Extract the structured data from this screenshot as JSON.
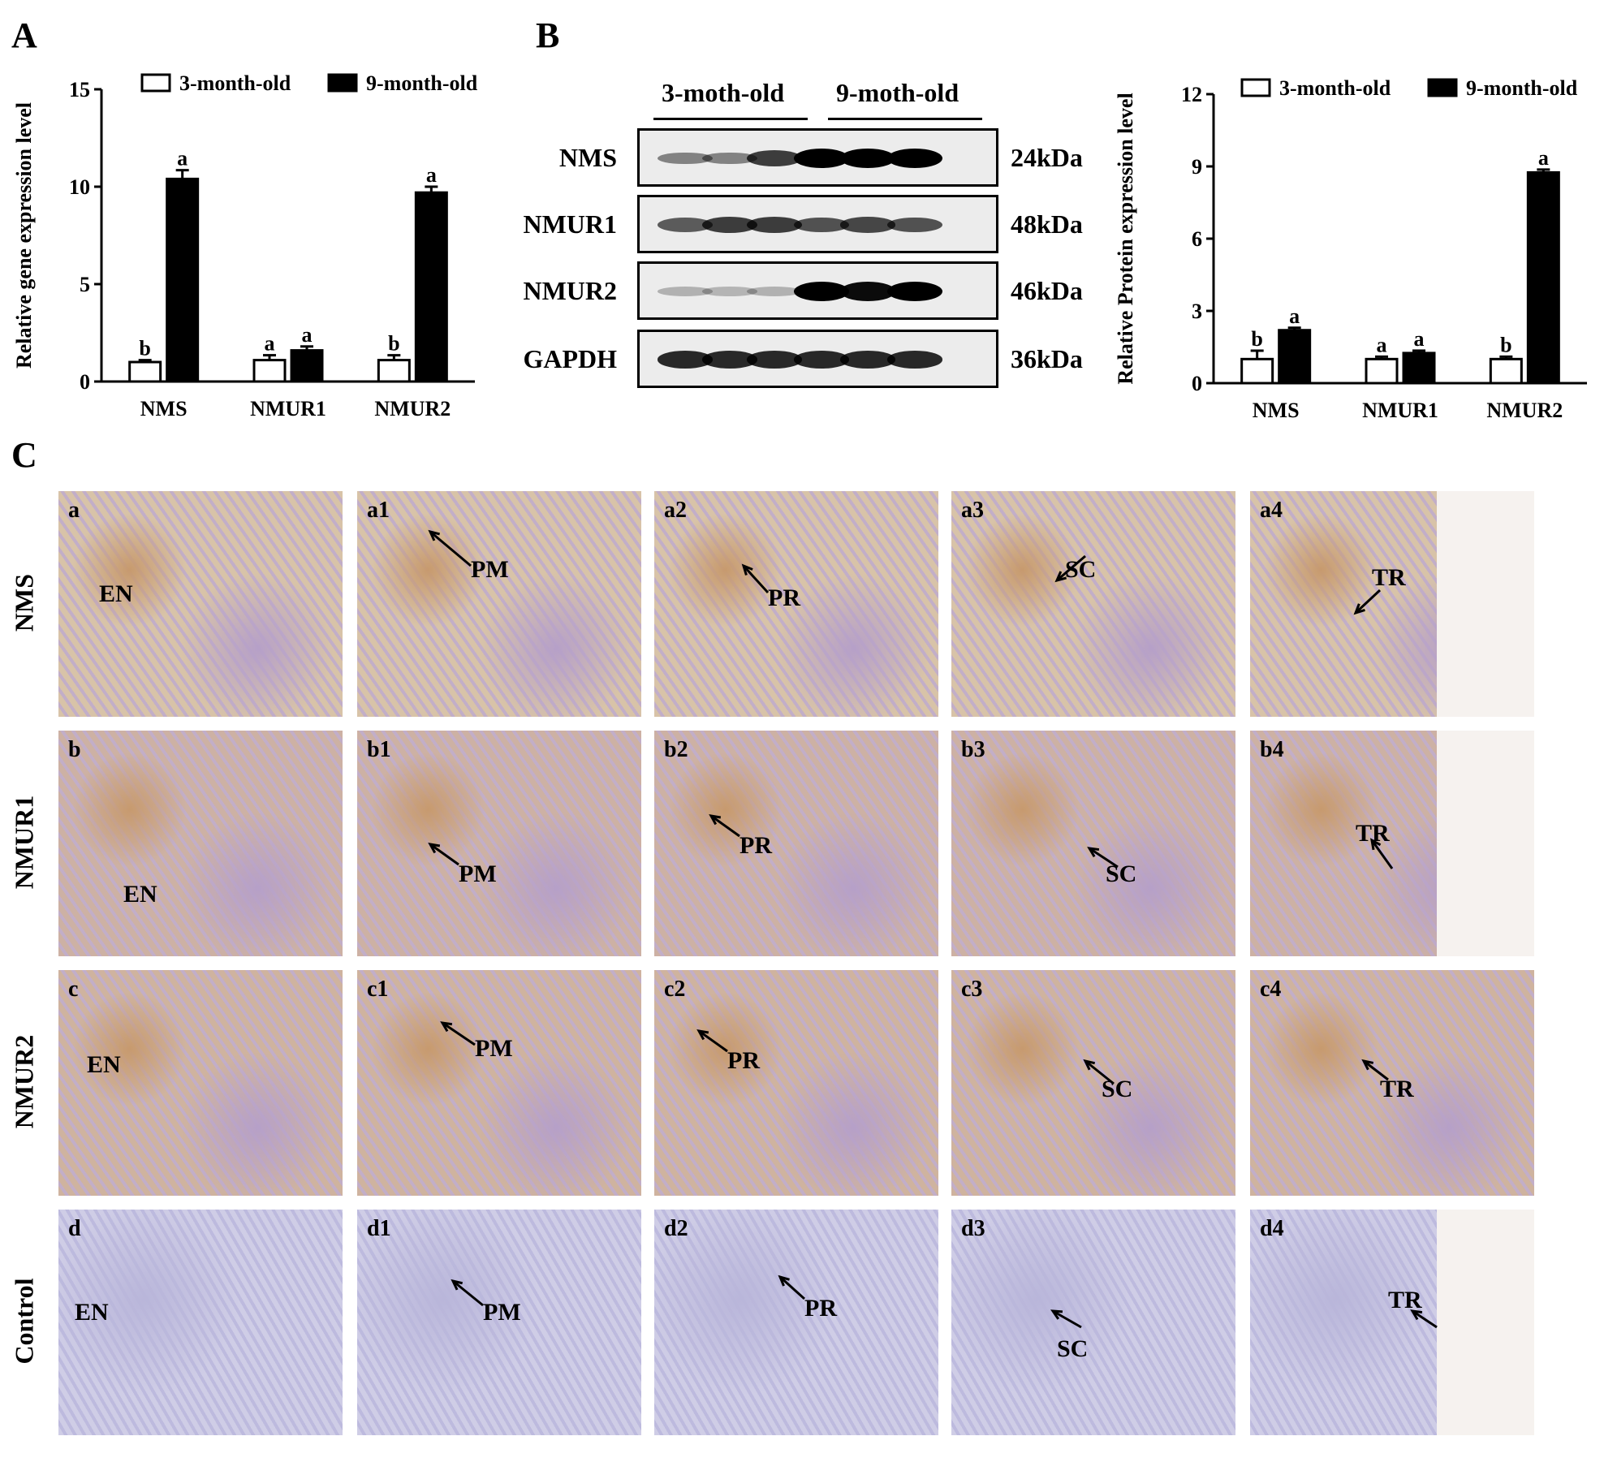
{
  "panels": {
    "A": "A",
    "B": "B",
    "C": "C"
  },
  "chart_data": [
    {
      "type": "bar",
      "ylabel": "Relative gene expression level",
      "categories": [
        "NMS",
        "NMUR1",
        "NMUR2"
      ],
      "ylim": [
        0,
        15
      ],
      "yticks": [
        "0",
        "5",
        "10",
        "15"
      ],
      "series": [
        {
          "name": "3-month-old",
          "values": [
            1.0,
            1.1,
            1.1
          ],
          "errors": [
            0.1,
            0.25,
            0.25
          ],
          "sig": [
            "b",
            "a",
            "b"
          ]
        },
        {
          "name": "9-month-old",
          "values": [
            10.4,
            1.6,
            9.7
          ],
          "errors": [
            0.45,
            0.2,
            0.3
          ],
          "sig": [
            "a",
            "a",
            "a"
          ]
        }
      ],
      "legend": "top"
    },
    {
      "type": "bar",
      "ylabel": "Relative Protein expression level",
      "categories": [
        "NMS",
        "NMUR1",
        "NMUR2"
      ],
      "ylim": [
        0,
        12
      ],
      "yticks": [
        "0",
        "3",
        "6",
        "9",
        "12"
      ],
      "series": [
        {
          "name": "3-month-old",
          "values": [
            1.0,
            1.0,
            1.0
          ],
          "errors": [
            0.35,
            0.1,
            0.1
          ],
          "sig": [
            "b",
            "a",
            "b"
          ]
        },
        {
          "name": "9-month-old",
          "values": [
            2.2,
            1.25,
            8.75
          ],
          "errors": [
            0.1,
            0.1,
            0.12
          ],
          "sig": [
            "a",
            "a",
            "a"
          ]
        }
      ],
      "legend": "top"
    }
  ],
  "blot": {
    "groups": [
      "3-moth-old",
      "9-moth-old"
    ],
    "rows": [
      {
        "name": "NMS",
        "kda": "24kDa",
        "bands": [
          0.35,
          0.35,
          0.7,
          1,
          1,
          1
        ]
      },
      {
        "name": "NMUR1",
        "kda": "48kDa",
        "bands": [
          0.55,
          0.7,
          0.7,
          0.6,
          0.65,
          0.6
        ]
      },
      {
        "name": "NMUR2",
        "kda": "46kDa",
        "bands": [
          0.12,
          0.1,
          0.12,
          1,
          0.95,
          1
        ]
      },
      {
        "name": "GAPDH",
        "kda": "36kDa",
        "bands": [
          0.8,
          0.8,
          0.8,
          0.8,
          0.8,
          0.8
        ]
      }
    ]
  },
  "micrographs": {
    "rows": [
      {
        "label": "NMS",
        "tone": "#d8c3a8",
        "tiles": [
          {
            "id": "a",
            "marker": "EN"
          },
          {
            "id": "a1",
            "marker": "PM"
          },
          {
            "id": "a2",
            "marker": "PR"
          },
          {
            "id": "a3",
            "marker": "SC"
          },
          {
            "id": "a4",
            "marker": "TR"
          }
        ]
      },
      {
        "label": "NMUR1",
        "tone": "#cdb1a4",
        "tiles": [
          {
            "id": "b",
            "marker": "EN"
          },
          {
            "id": "b1",
            "marker": "PM"
          },
          {
            "id": "b2",
            "marker": "PR"
          },
          {
            "id": "b3",
            "marker": "SC"
          },
          {
            "id": "b4",
            "marker": "TR"
          }
        ]
      },
      {
        "label": "NMUR2",
        "tone": "#cfb39f",
        "tiles": [
          {
            "id": "c",
            "marker": "EN"
          },
          {
            "id": "c1",
            "marker": "PM"
          },
          {
            "id": "c2",
            "marker": "PR"
          },
          {
            "id": "c3",
            "marker": "SC"
          },
          {
            "id": "c4",
            "marker": "TR"
          }
        ]
      },
      {
        "label": "Control",
        "tone": "#c4c2de",
        "tiles": [
          {
            "id": "d",
            "marker": "EN"
          },
          {
            "id": "d1",
            "marker": "PM"
          },
          {
            "id": "d2",
            "marker": "PR"
          },
          {
            "id": "d3",
            "marker": "SC"
          },
          {
            "id": "d4",
            "marker": "TR"
          }
        ]
      }
    ]
  }
}
